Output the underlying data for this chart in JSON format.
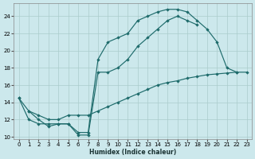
{
  "xlabel": "Humidex (Indice chaleur)",
  "bg_color": "#cce8ec",
  "grid_color": "#aacccc",
  "line_color": "#1e6b6b",
  "xlim": [
    0,
    23
  ],
  "ylim": [
    10,
    25
  ],
  "xticks": [
    0,
    1,
    2,
    3,
    4,
    5,
    6,
    7,
    8,
    9,
    10,
    11,
    12,
    13,
    14,
    15,
    16,
    17,
    18,
    19,
    20,
    21,
    22,
    23
  ],
  "yticks": [
    10,
    12,
    14,
    16,
    18,
    20,
    22,
    24
  ],
  "curve_top_x": [
    0,
    1,
    2,
    3,
    4,
    5,
    6,
    7,
    8,
    9,
    10,
    11,
    12,
    13,
    14,
    15,
    16,
    17,
    18,
    19,
    20,
    21,
    22
  ],
  "curve_top_y": [
    14.5,
    13.0,
    12.0,
    11.2,
    11.5,
    11.5,
    10.5,
    10.5,
    19.0,
    21.0,
    21.5,
    22.0,
    23.5,
    24.0,
    24.5,
    24.8,
    24.8,
    24.5,
    23.5,
    22.5,
    21.0,
    18.0,
    17.5
  ],
  "curve_lin_x": [
    1,
    2,
    3,
    4,
    5,
    6,
    7,
    8,
    9,
    10,
    11,
    12,
    13,
    14,
    15,
    16,
    17,
    18,
    19,
    20,
    21,
    22,
    23
  ],
  "curve_lin_y": [
    13.0,
    12.5,
    12.0,
    12.0,
    12.5,
    12.5,
    12.5,
    13.0,
    13.5,
    14.0,
    14.5,
    15.0,
    15.5,
    16.0,
    16.3,
    16.5,
    16.8,
    17.0,
    17.2,
    17.3,
    17.4,
    17.5,
    17.5
  ],
  "curve_zig_x": [
    0,
    1,
    2,
    3,
    4,
    5,
    6,
    7,
    8,
    9,
    10,
    11,
    12,
    13,
    14,
    15,
    16,
    17,
    18
  ],
  "curve_zig_y": [
    14.5,
    12.0,
    11.5,
    11.5,
    11.5,
    11.5,
    10.2,
    10.2,
    17.5,
    17.5,
    18.0,
    19.0,
    20.5,
    21.5,
    22.5,
    23.5,
    24.0,
    23.5,
    23.0
  ]
}
